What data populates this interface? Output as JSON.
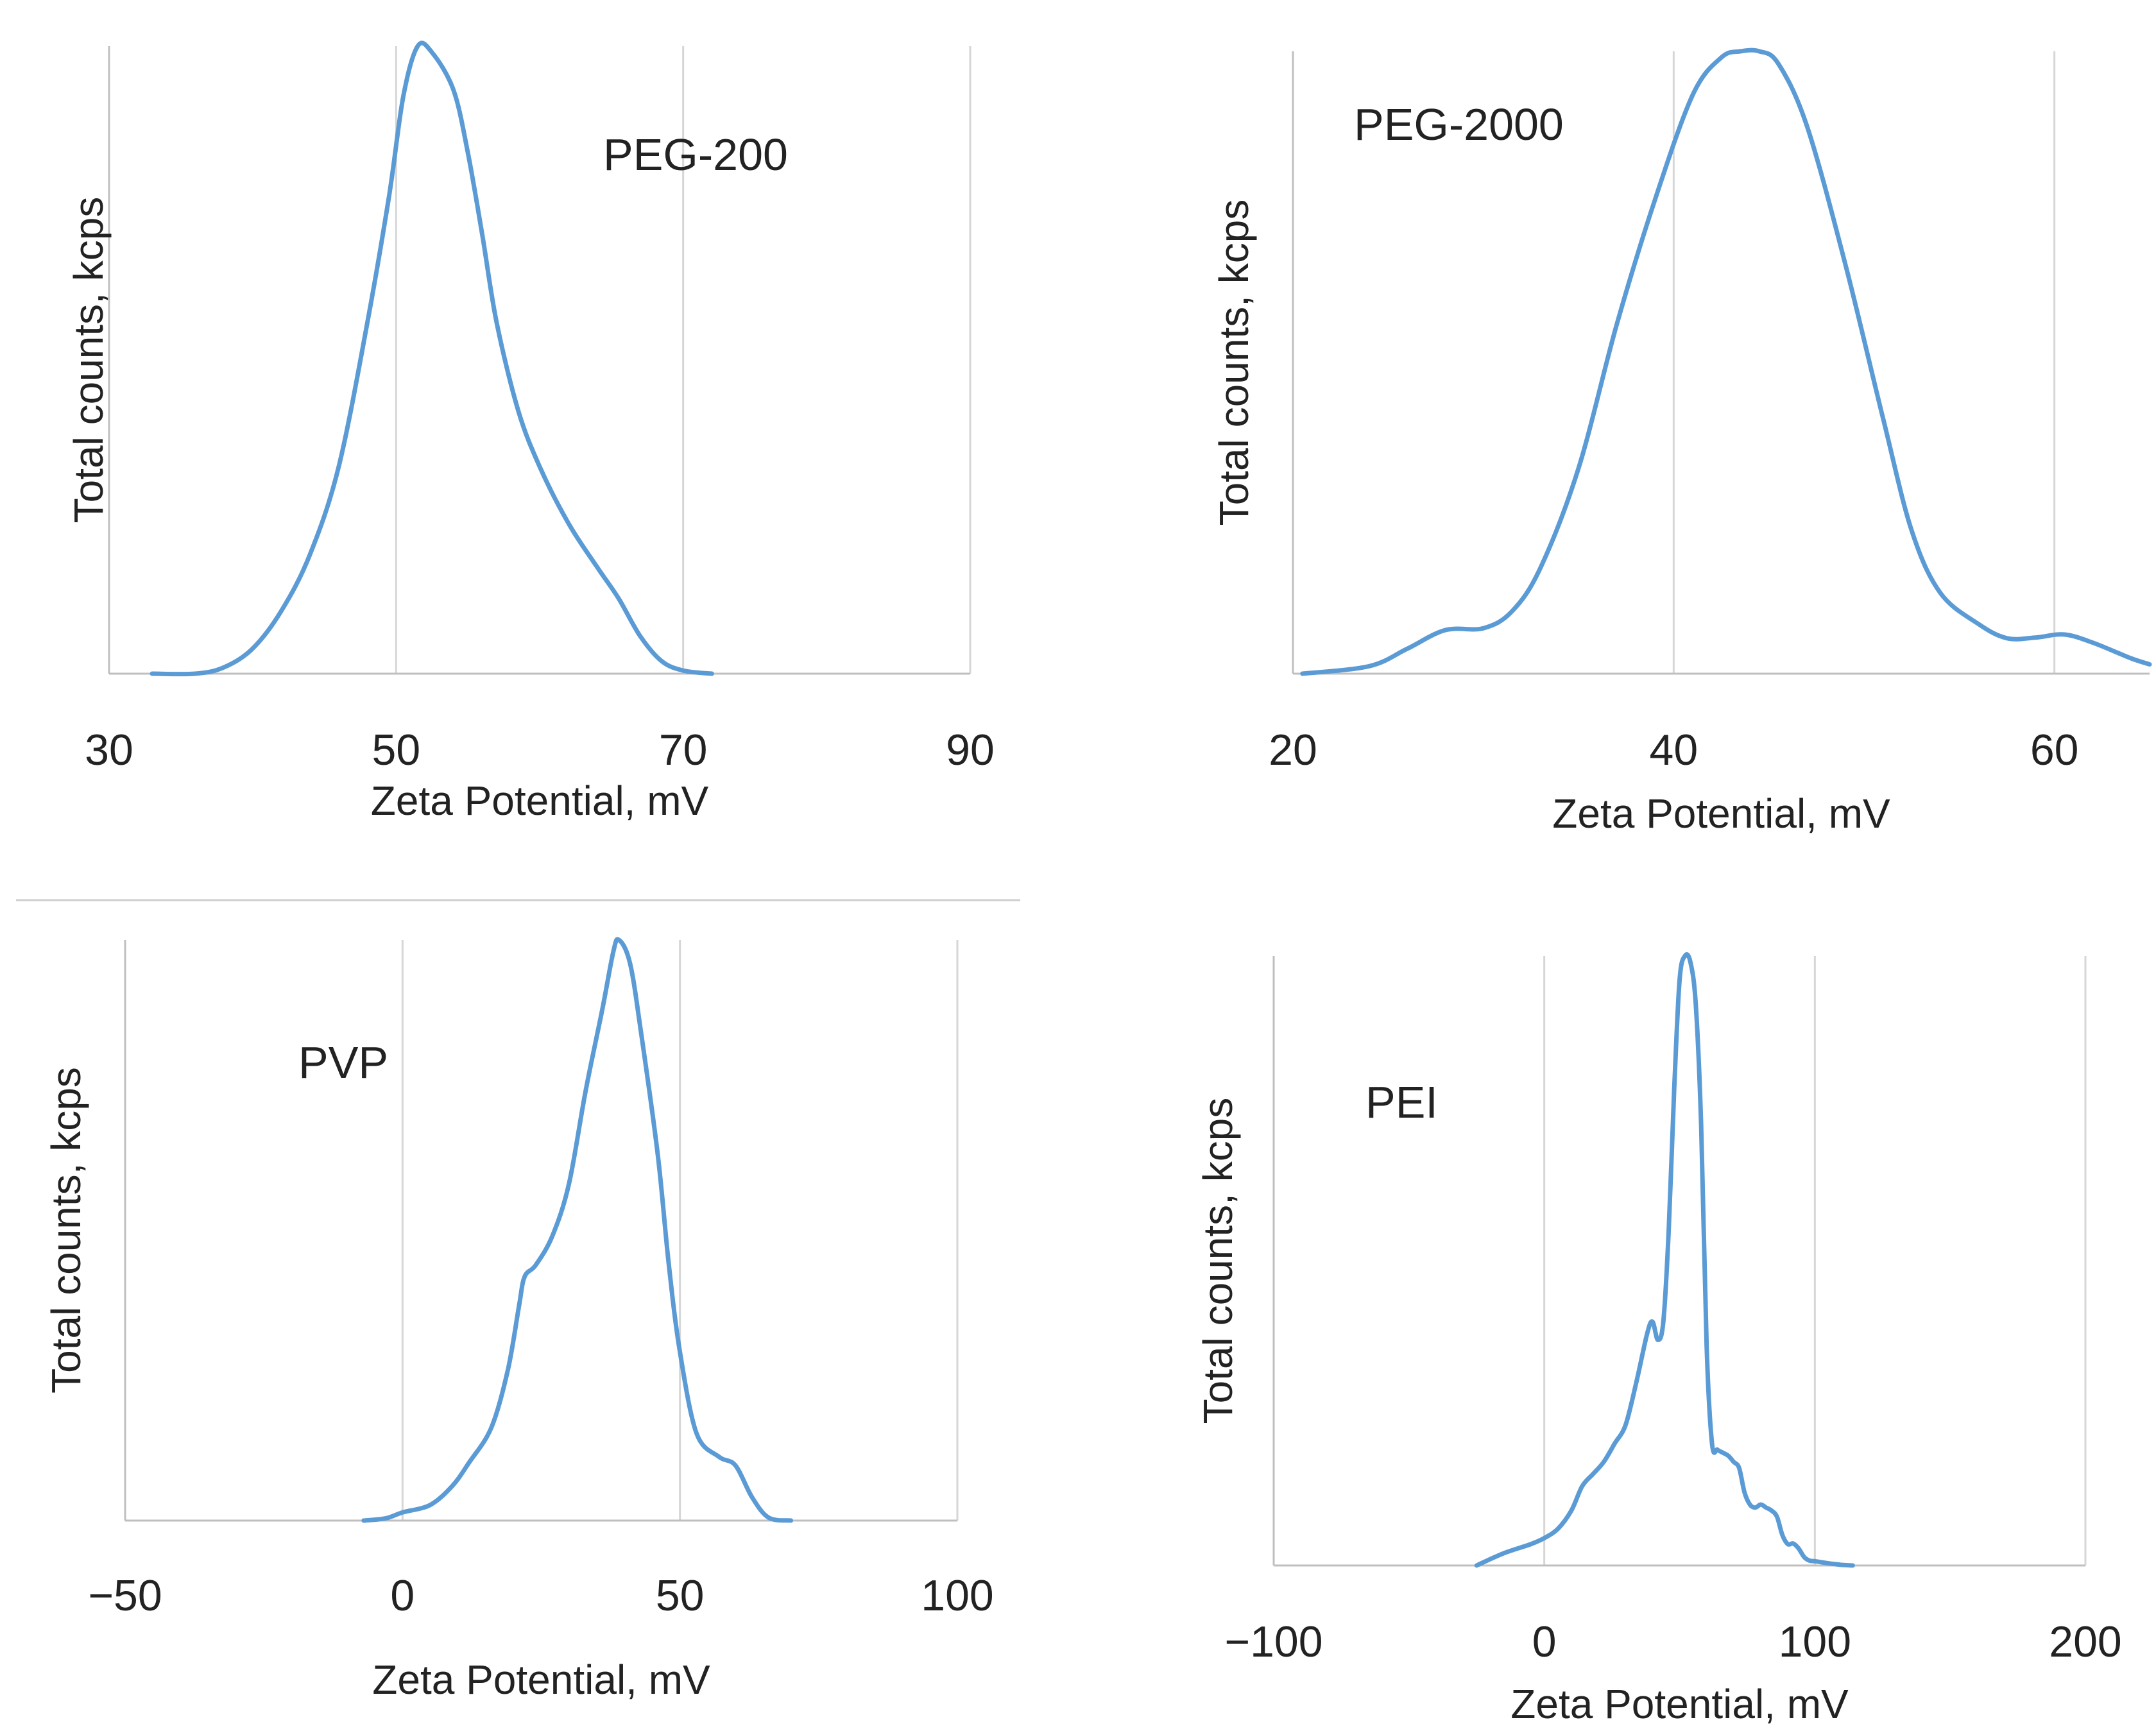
{
  "figure": {
    "accent": "#5b9bd5"
  },
  "chart_data": [
    {
      "type": "line",
      "annotation": "PEG-200",
      "xlabel": "Zeta Potential, mV",
      "ylabel": "Total counts, kcps",
      "xlim": [
        30,
        90
      ],
      "ylim": [
        0,
        1
      ],
      "xticks": [
        30,
        50,
        70,
        90
      ],
      "xtick_labels": [
        "30",
        "50",
        "70",
        "90"
      ],
      "grid": true,
      "series": [
        {
          "name": "PEG-200",
          "x": [
            33,
            36,
            38,
            40,
            42,
            44,
            46,
            48,
            49.5,
            50.5,
            51.5,
            52.5,
            54,
            55,
            56,
            57,
            58.5,
            60,
            62,
            64,
            65.5,
            67,
            68.5,
            70,
            72
          ],
          "y": [
            0,
            0,
            0.01,
            0.04,
            0.1,
            0.19,
            0.33,
            0.56,
            0.76,
            0.92,
            1.0,
            0.99,
            0.93,
            0.83,
            0.7,
            0.56,
            0.42,
            0.33,
            0.24,
            0.17,
            0.12,
            0.06,
            0.02,
            0.005,
            0
          ]
        }
      ]
    },
    {
      "type": "line",
      "annotation": "PEG-2000",
      "xlabel": "Zeta Potential, mV",
      "ylabel": "Total counts, kcps",
      "xlim": [
        20,
        65
      ],
      "ylim": [
        0,
        1
      ],
      "xticks": [
        20,
        40,
        60
      ],
      "xtick_labels": [
        "20",
        "40",
        "60"
      ],
      "grid": true,
      "series": [
        {
          "name": "PEG-2000",
          "x": [
            20.5,
            24,
            26,
            28,
            30,
            31.5,
            33,
            35,
            37,
            39,
            41,
            42.5,
            43.5,
            44.5,
            45.5,
            47,
            49,
            51,
            52.5,
            54,
            56,
            57.5,
            59,
            60.5,
            62,
            64,
            65
          ],
          "y": [
            0.0,
            0.012,
            0.04,
            0.07,
            0.073,
            0.1,
            0.17,
            0.33,
            0.56,
            0.76,
            0.93,
            0.99,
            1.0,
            1.0,
            0.98,
            0.88,
            0.66,
            0.41,
            0.23,
            0.13,
            0.08,
            0.057,
            0.058,
            0.063,
            0.05,
            0.025,
            0.015
          ]
        }
      ]
    },
    {
      "type": "line",
      "annotation": "PVP",
      "xlabel": "Zeta Potential, mV",
      "ylabel": "Total counts, kcps",
      "xlim": [
        -50,
        100
      ],
      "ylim": [
        0,
        1
      ],
      "xticks": [
        -50,
        0,
        50,
        100
      ],
      "xtick_labels": [
        "−50",
        "0",
        "50",
        "100"
      ],
      "grid": true,
      "series": [
        {
          "name": "PVP",
          "x": [
            -7,
            -3,
            0,
            5,
            9,
            12,
            16,
            19,
            21,
            22,
            24,
            27,
            30,
            33,
            36,
            38,
            39,
            41,
            43,
            46,
            48,
            50,
            53,
            57,
            60,
            63,
            66,
            70
          ],
          "y": [
            0,
            0.004,
            0.014,
            0.027,
            0.06,
            0.1,
            0.16,
            0.26,
            0.37,
            0.42,
            0.44,
            0.49,
            0.58,
            0.74,
            0.88,
            0.98,
            1.0,
            0.96,
            0.84,
            0.63,
            0.44,
            0.29,
            0.15,
            0.11,
            0.095,
            0.04,
            0.005,
            0
          ]
        }
      ]
    },
    {
      "type": "line",
      "annotation": "PEI",
      "xlabel": "Zeta Potential, mV",
      "ylabel": "Total counts, kcps",
      "xlim": [
        -100,
        200
      ],
      "ylim": [
        0,
        1
      ],
      "xticks": [
        -100,
        0,
        100,
        200
      ],
      "xtick_labels": [
        "−100",
        "0",
        "100",
        "200"
      ],
      "grid": true,
      "series": [
        {
          "name": "PEI",
          "x": [
            -25,
            -15,
            -5,
            0,
            5,
            10,
            14,
            18,
            22,
            26,
            30,
            34,
            38,
            40,
            42,
            44,
            46,
            48,
            50,
            52,
            54,
            56,
            58,
            60,
            62,
            64,
            66,
            68,
            70,
            72,
            74,
            76,
            78,
            80,
            82,
            84,
            86,
            88,
            90,
            92,
            94,
            96,
            98,
            100,
            103,
            106,
            110,
            114
          ],
          "y": [
            0,
            0.02,
            0.035,
            0.045,
            0.06,
            0.09,
            0.13,
            0.15,
            0.17,
            0.2,
            0.23,
            0.3,
            0.38,
            0.4,
            0.37,
            0.4,
            0.55,
            0.78,
            0.96,
            1.0,
            0.99,
            0.92,
            0.72,
            0.36,
            0.2,
            0.19,
            0.185,
            0.18,
            0.17,
            0.16,
            0.12,
            0.1,
            0.095,
            0.1,
            0.095,
            0.09,
            0.08,
            0.05,
            0.035,
            0.036,
            0.028,
            0.014,
            0.008,
            0.007,
            0.005,
            0.003,
            0.001,
            0
          ]
        }
      ]
    }
  ]
}
